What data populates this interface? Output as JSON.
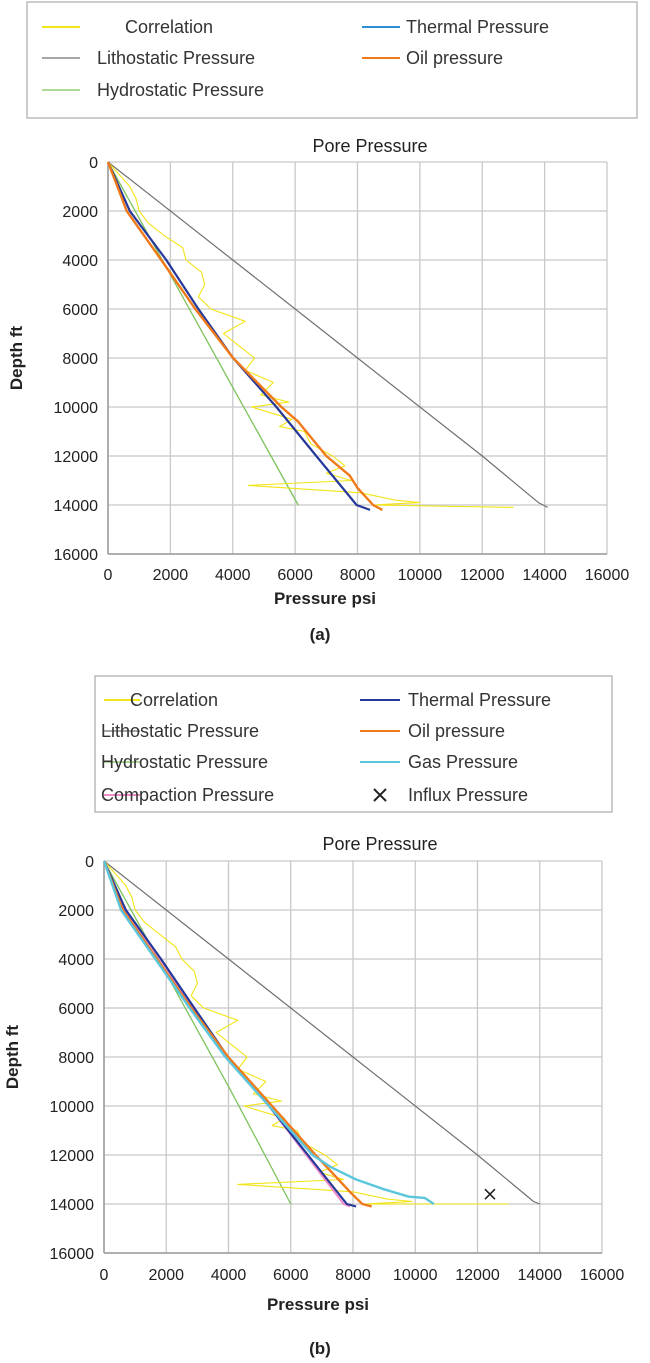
{
  "colors": {
    "correlation": "#f2e416",
    "lithostatic": "#707070",
    "hydrostatic": "#7dc35a",
    "thermal_legend_a": "#2a8fd4",
    "thermal": "#26389a",
    "oil": "#f07a1a",
    "gas": "#5cc6dc",
    "compaction": "#f08cc8",
    "influx": "#222222",
    "grid": "#c8c8c8"
  },
  "chart_data": [
    {
      "type": "line",
      "caption": "(a)",
      "title": "Pore Pressure",
      "xlabel": "Pressure psi",
      "ylabel": "Depth ft",
      "xlim": [
        0,
        16000
      ],
      "ylim": [
        0,
        16000
      ],
      "y_inverted": true,
      "grid": true,
      "legend_placement": "top (outside)",
      "xticks": [
        "0",
        "2000",
        "4000",
        "6000",
        "8000",
        "10000",
        "12000",
        "14000",
        "16000"
      ],
      "yticks": [
        "0",
        "2000",
        "4000",
        "6000",
        "8000",
        "10000",
        "12000",
        "14000",
        "16000"
      ],
      "legend": [
        {
          "key": "correlation",
          "label": "Correlation",
          "color_key": "correlation"
        },
        {
          "key": "thermal",
          "label": "Thermal Pressure",
          "color_key": "thermal_legend_a"
        },
        {
          "key": "lithostatic",
          "label": "Lithostatic Pressure",
          "color_key": "lithostatic"
        },
        {
          "key": "oil",
          "label": "Oil pressure",
          "color_key": "oil"
        },
        {
          "key": "hydrostatic",
          "label": "Hydrostatic Pressure",
          "color_key": "hydrostatic"
        }
      ],
      "series": [
        {
          "key": "lithostatic",
          "name": "Lithostatic Pressure",
          "points": [
            [
              0,
              0
            ],
            [
              4000,
              4000
            ],
            [
              8000,
              8000
            ],
            [
              12000,
              12000
            ],
            [
              13800,
              13900
            ],
            [
              14100,
              14100
            ]
          ]
        },
        {
          "key": "hydrostatic",
          "name": "Hydrostatic Pressure",
          "points": [
            [
              0,
              0
            ],
            [
              2000,
              4600
            ],
            [
              4000,
              9200
            ],
            [
              6100,
              14000
            ]
          ]
        },
        {
          "key": "correlation",
          "name": "Correlation",
          "points": [
            [
              0,
              0
            ],
            [
              700,
              1000
            ],
            [
              900,
              1500
            ],
            [
              1000,
              2000
            ],
            [
              1300,
              2500
            ],
            [
              1800,
              3000
            ],
            [
              2400,
              3500
            ],
            [
              2500,
              4000
            ],
            [
              3000,
              4500
            ],
            [
              3100,
              5000
            ],
            [
              2900,
              5500
            ],
            [
              3300,
              6000
            ],
            [
              4400,
              6500
            ],
            [
              3700,
              7000
            ],
            [
              4200,
              7500
            ],
            [
              4700,
              8000
            ],
            [
              4400,
              8500
            ],
            [
              5300,
              9000
            ],
            [
              4900,
              9500
            ],
            [
              5800,
              9800
            ],
            [
              4600,
              10000
            ],
            [
              5900,
              10500
            ],
            [
              5500,
              10800
            ],
            [
              6300,
              11000
            ],
            [
              6500,
              11500
            ],
            [
              7200,
              12000
            ],
            [
              7600,
              12400
            ],
            [
              7000,
              12700
            ],
            [
              7800,
              13000
            ],
            [
              4500,
              13200
            ],
            [
              8100,
              13500
            ],
            [
              9200,
              13800
            ],
            [
              10000,
              13900
            ],
            [
              8500,
              14000
            ],
            [
              13000,
              14100
            ]
          ]
        },
        {
          "key": "thermal",
          "name": "Thermal Pressure",
          "points": [
            [
              0,
              0
            ],
            [
              700,
              2000
            ],
            [
              1870,
              4000
            ],
            [
              2900,
              6000
            ],
            [
              4010,
              8000
            ],
            [
              5400,
              10000
            ],
            [
              6680,
              12000
            ],
            [
              7970,
              14000
            ],
            [
              8400,
              14200
            ]
          ]
        },
        {
          "key": "oil",
          "name": "Oil pressure",
          "points": [
            [
              0,
              0
            ],
            [
              600,
              2000
            ],
            [
              1710,
              4000
            ],
            [
              2800,
              6000
            ],
            [
              4010,
              8000
            ],
            [
              5560,
              10000
            ],
            [
              6100,
              10600
            ],
            [
              7000,
              12000
            ],
            [
              7750,
              12800
            ],
            [
              8000,
              13300
            ],
            [
              8500,
              14000
            ],
            [
              8800,
              14200
            ]
          ]
        }
      ]
    },
    {
      "type": "line",
      "caption": "(b)",
      "title": "Pore Pressure",
      "xlabel": "Pressure psi",
      "ylabel": "Depth ft",
      "xlim": [
        0,
        16000
      ],
      "ylim": [
        0,
        16000
      ],
      "y_inverted": true,
      "grid": true,
      "legend_placement": "top (outside)",
      "xticks": [
        "0",
        "2000",
        "4000",
        "6000",
        "8000",
        "10000",
        "12000",
        "14000",
        "16000"
      ],
      "yticks": [
        "0",
        "2000",
        "4000",
        "6000",
        "8000",
        "10000",
        "12000",
        "14000",
        "16000"
      ],
      "legend": [
        {
          "key": "correlation",
          "label": "Correlation",
          "color_key": "correlation"
        },
        {
          "key": "thermal",
          "label": "Thermal Pressure",
          "color_key": "thermal"
        },
        {
          "key": "lithostatic",
          "label": "Lithostatic Pressure",
          "color_key": "lithostatic"
        },
        {
          "key": "oil",
          "label": "Oil pressure",
          "color_key": "oil"
        },
        {
          "key": "hydrostatic",
          "label": "Hydrostatic Pressure",
          "color_key": "hydrostatic"
        },
        {
          "key": "gas",
          "label": "Gas Pressure",
          "color_key": "gas"
        },
        {
          "key": "compaction",
          "label": "Compaction Pressure",
          "color_key": "compaction"
        },
        {
          "key": "influx",
          "label": "Influx Pressure",
          "color_key": "influx",
          "marker": "x"
        }
      ],
      "series": [
        {
          "key": "lithostatic",
          "name": "Lithostatic Pressure",
          "points": [
            [
              0,
              0
            ],
            [
              4000,
              4000
            ],
            [
              8000,
              8000
            ],
            [
              12000,
              12000
            ],
            [
              13800,
              13900
            ],
            [
              14000,
              14000
            ]
          ]
        },
        {
          "key": "hydrostatic",
          "name": "Hydrostatic Pressure",
          "points": [
            [
              0,
              0
            ],
            [
              2000,
              4600
            ],
            [
              4000,
              9200
            ],
            [
              6000,
              14000
            ]
          ]
        },
        {
          "key": "correlation",
          "name": "Correlation",
          "points": [
            [
              0,
              0
            ],
            [
              700,
              1000
            ],
            [
              900,
              1500
            ],
            [
              1000,
              2000
            ],
            [
              1300,
              2500
            ],
            [
              1800,
              3000
            ],
            [
              2300,
              3500
            ],
            [
              2500,
              4000
            ],
            [
              2900,
              4500
            ],
            [
              3000,
              5000
            ],
            [
              2800,
              5500
            ],
            [
              3200,
              6000
            ],
            [
              4300,
              6500
            ],
            [
              3600,
              7000
            ],
            [
              4100,
              7500
            ],
            [
              4600,
              8000
            ],
            [
              4300,
              8500
            ],
            [
              5200,
              9000
            ],
            [
              4800,
              9500
            ],
            [
              5700,
              9800
            ],
            [
              4500,
              10000
            ],
            [
              5800,
              10500
            ],
            [
              5400,
              10800
            ],
            [
              6200,
              11000
            ],
            [
              6400,
              11500
            ],
            [
              7100,
              12000
            ],
            [
              7500,
              12400
            ],
            [
              6900,
              12700
            ],
            [
              7700,
              13000
            ],
            [
              4300,
              13200
            ],
            [
              8000,
              13500
            ],
            [
              9100,
              13800
            ],
            [
              9900,
              13900
            ],
            [
              8400,
              14000
            ],
            [
              13000,
              14000
            ]
          ]
        },
        {
          "key": "compaction",
          "name": "Compaction Pressure",
          "points": [
            [
              0,
              0
            ],
            [
              650,
              2000
            ],
            [
              1800,
              4000
            ],
            [
              2850,
              6000
            ],
            [
              3950,
              8000
            ],
            [
              5300,
              10000
            ],
            [
              6500,
              12000
            ],
            [
              7700,
              14000
            ],
            [
              7900,
              14100
            ]
          ]
        },
        {
          "key": "thermal",
          "name": "Thermal Pressure",
          "points": [
            [
              0,
              0
            ],
            [
              700,
              2000
            ],
            [
              1830,
              4000
            ],
            [
              2900,
              6000
            ],
            [
              3980,
              8000
            ],
            [
              5300,
              10000
            ],
            [
              6550,
              12000
            ],
            [
              7800,
              14000
            ],
            [
              8100,
              14100
            ]
          ]
        },
        {
          "key": "oil",
          "name": "Oil pressure",
          "points": [
            [
              0,
              0
            ],
            [
              600,
              2000
            ],
            [
              1700,
              4000
            ],
            [
              2800,
              6000
            ],
            [
              3990,
              8000
            ],
            [
              5400,
              10000
            ],
            [
              6800,
              12000
            ],
            [
              7900,
              13500
            ],
            [
              8300,
              14000
            ],
            [
              8600,
              14100
            ]
          ]
        },
        {
          "key": "gas",
          "name": "Gas Pressure",
          "points": [
            [
              0,
              0
            ],
            [
              550,
              2000
            ],
            [
              1650,
              4000
            ],
            [
              2750,
              6000
            ],
            [
              3900,
              8000
            ],
            [
              5300,
              10000
            ],
            [
              6700,
              12000
            ],
            [
              7300,
              12500
            ],
            [
              8100,
              13000
            ],
            [
              9000,
              13400
            ],
            [
              9800,
              13700
            ],
            [
              10300,
              13750
            ],
            [
              10600,
              14000
            ]
          ]
        }
      ],
      "markers": [
        {
          "key": "influx",
          "name": "Influx Pressure",
          "symbol": "x",
          "x": 12400,
          "y": 13600
        }
      ]
    }
  ]
}
